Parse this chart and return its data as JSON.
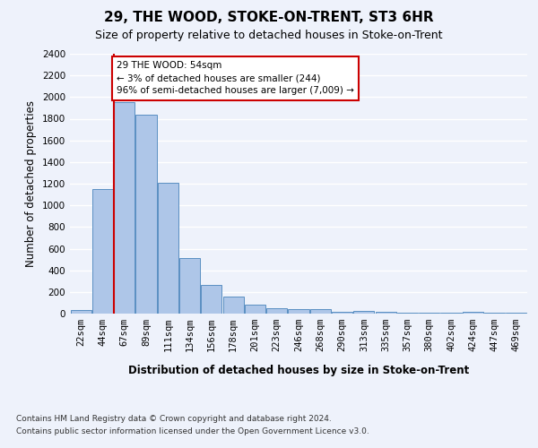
{
  "title": "29, THE WOOD, STOKE-ON-TRENT, ST3 6HR",
  "subtitle": "Size of property relative to detached houses in Stoke-on-Trent",
  "xlabel": "Distribution of detached houses by size in Stoke-on-Trent",
  "ylabel": "Number of detached properties",
  "categories": [
    "22sqm",
    "44sqm",
    "67sqm",
    "89sqm",
    "111sqm",
    "134sqm",
    "156sqm",
    "178sqm",
    "201sqm",
    "223sqm",
    "246sqm",
    "268sqm",
    "290sqm",
    "313sqm",
    "335sqm",
    "357sqm",
    "380sqm",
    "402sqm",
    "424sqm",
    "447sqm",
    "469sqm"
  ],
  "values": [
    30,
    1150,
    1950,
    1840,
    1210,
    510,
    265,
    155,
    80,
    50,
    45,
    40,
    20,
    25,
    15,
    10,
    5,
    5,
    20,
    5,
    5
  ],
  "bar_color": "#aec6e8",
  "bar_edge_color": "#5a8fc2",
  "property_line_x": 1.5,
  "property_sqm": 54,
  "annotation_text": "29 THE WOOD: 54sqm\n← 3% of detached houses are smaller (244)\n96% of semi-detached houses are larger (7,009) →",
  "annotation_box_color": "#ffffff",
  "annotation_box_edge_color": "#cc0000",
  "red_line_color": "#cc0000",
  "ylim": [
    0,
    2400
  ],
  "yticks": [
    0,
    200,
    400,
    600,
    800,
    1000,
    1200,
    1400,
    1600,
    1800,
    2000,
    2200,
    2400
  ],
  "footer_line1": "Contains HM Land Registry data © Crown copyright and database right 2024.",
  "footer_line2": "Contains public sector information licensed under the Open Government Licence v3.0.",
  "bg_color": "#eef2fb",
  "plot_bg_color": "#eef2fb",
  "grid_color": "#ffffff",
  "title_fontsize": 11,
  "subtitle_fontsize": 9,
  "axis_label_fontsize": 8.5,
  "tick_fontsize": 7.5,
  "footer_fontsize": 6.5
}
